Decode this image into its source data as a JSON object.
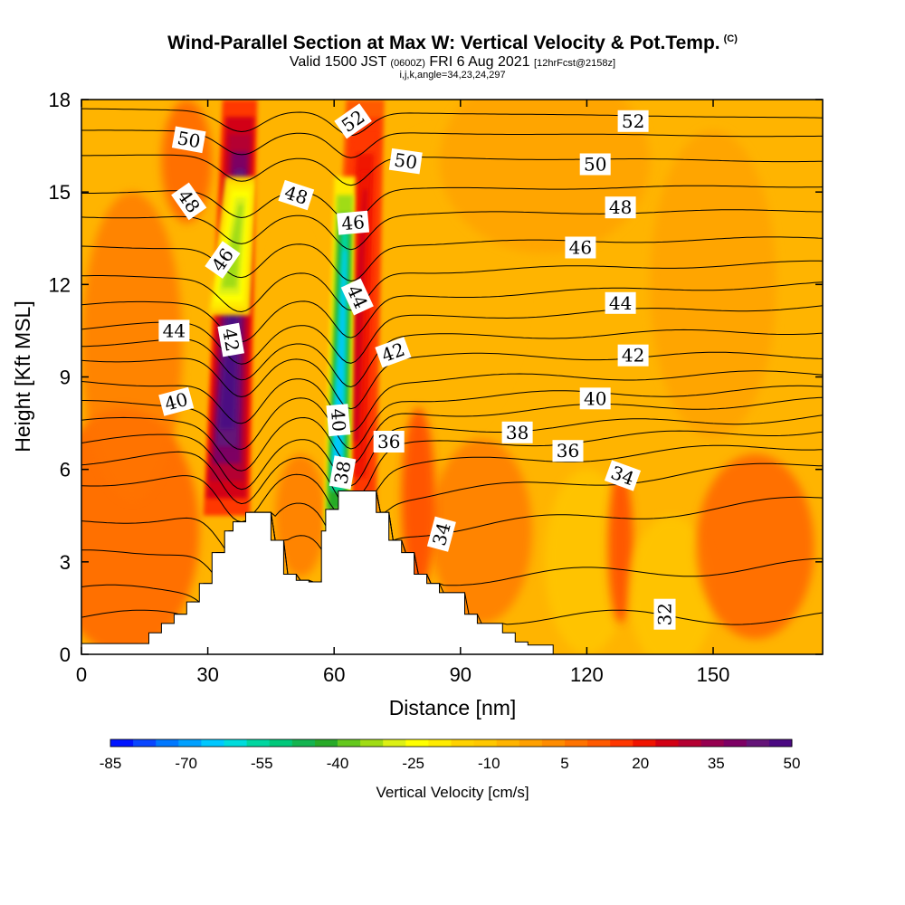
{
  "header": {
    "title": "Wind-Parallel Section at Max W: Vertical Velocity & Pot.Temp.",
    "title_mark": "(C)",
    "valid_prefix": "Valid 1500 JST",
    "valid_utc": "(0600Z)",
    "valid_date": "FRI 6 Aug 2021",
    "forecast": "[12hrFcst@2158z]",
    "params": "i,j,k,angle=34,23,24,297"
  },
  "chart_data": {
    "type": "heatmap",
    "xlabel": "Distance [nm]",
    "ylabel": "Height [Kft MSL]",
    "xlim": [
      0,
      176
    ],
    "ylim": [
      0,
      18
    ],
    "x_ticks": [
      "0",
      "30",
      "60",
      "90",
      "120",
      "150"
    ],
    "y_ticks": [
      "0",
      "3",
      "6",
      "9",
      "12",
      "15",
      "18"
    ],
    "x_tick_values": [
      0,
      30,
      60,
      90,
      120,
      150
    ],
    "y_tick_values": [
      0,
      3,
      6,
      9,
      12,
      15,
      18
    ],
    "field": "Vertical Velocity [cm/s]",
    "colorbar": {
      "title": "Vertical Velocity [cm/s]",
      "labels": [
        "-85",
        "-70",
        "-55",
        "-40",
        "-25",
        "-10",
        "5",
        "20",
        "35",
        "50"
      ],
      "label_values": [
        -85,
        -70,
        -55,
        -40,
        -25,
        -10,
        5,
        20,
        35,
        50
      ],
      "colors": [
        "#0014ff",
        "#0a46ff",
        "#0078ff",
        "#00a0ff",
        "#00c8ff",
        "#00dcdc",
        "#00d6a0",
        "#00c87a",
        "#14b450",
        "#28aa28",
        "#64c81e",
        "#a0dc14",
        "#dcf014",
        "#ffff00",
        "#ffeb00",
        "#ffd200",
        "#ffc800",
        "#ffb400",
        "#ffa000",
        "#ff8c00",
        "#ff7300",
        "#ff5a00",
        "#ff3700",
        "#f01400",
        "#d20014",
        "#b40032",
        "#960050",
        "#7d0064",
        "#641478",
        "#4b0a82"
      ]
    },
    "background_w_range": [
      -10,
      15
    ],
    "updraft_bands": [
      {
        "name": "band-1",
        "x_range": [
          30,
          40
        ],
        "z_range": [
          4.5,
          18
        ],
        "w_max": 50
      },
      {
        "name": "band-2",
        "x_range": [
          59,
          70
        ],
        "z_range": [
          4,
          18
        ],
        "w_max": 25
      }
    ],
    "downdraft_bands": [
      {
        "name": "green-1",
        "x_range": [
          31,
          40
        ],
        "z_range": [
          11,
          15.5
        ],
        "w_min": -35
      },
      {
        "name": "green-2",
        "x_range": [
          58,
          64
        ],
        "z_range": [
          3.5,
          15.5
        ],
        "w_min": -65
      }
    ],
    "terrain": {
      "x": [
        0,
        16,
        16,
        19,
        19,
        22,
        22,
        25,
        25,
        28,
        28,
        31,
        31,
        34,
        34,
        36,
        36,
        39,
        39,
        45,
        45,
        48,
        48,
        51,
        51,
        54,
        54,
        57,
        57,
        58,
        58,
        61,
        61,
        70,
        70,
        73,
        73,
        76,
        76,
        79,
        79,
        82,
        82,
        85,
        85,
        91,
        91,
        94,
        94,
        100,
        100,
        103,
        103,
        106,
        106,
        112,
        112,
        115,
        115,
        176
      ],
      "z": [
        0.35,
        0.35,
        0.7,
        0.7,
        1.0,
        1.0,
        1.3,
        1.3,
        1.7,
        1.7,
        2.3,
        2.3,
        3.3,
        3.3,
        4.0,
        4.0,
        4.3,
        4.3,
        4.6,
        4.6,
        3.7,
        3.7,
        2.6,
        2.6,
        2.4,
        2.4,
        2.35,
        2.35,
        4.0,
        4.0,
        4.7,
        4.7,
        5.3,
        5.3,
        4.6,
        4.6,
        3.7,
        3.7,
        3.3,
        3.3,
        2.6,
        2.6,
        2.3,
        2.3,
        2.0,
        2.0,
        1.3,
        1.3,
        1.0,
        1.0,
        0.7,
        0.7,
        0.4,
        0.4,
        0.3,
        0.3,
        0.0,
        0.0,
        0.0
      ]
    },
    "contours": [
      {
        "value": 32,
        "label": "32",
        "y_left": 1.2,
        "y_right": 1.2
      },
      {
        "value": 33,
        "label": "",
        "y_left": 2.0,
        "y_right": 2.9
      },
      {
        "value": 34,
        "label": "34",
        "y_left": 3.2,
        "y_right": 5.0
      },
      {
        "value": 35,
        "label": "",
        "y_left": 4.3,
        "y_right": 6.2
      },
      {
        "value": 36,
        "label": "36",
        "y_left": 5.6,
        "y_right": 6.8
      },
      {
        "value": 37,
        "label": "",
        "y_left": 6.3,
        "y_right": 7.3
      },
      {
        "value": 38,
        "label": "38",
        "y_left": 6.9,
        "y_right": 7.7
      },
      {
        "value": 39,
        "label": "",
        "y_left": 7.5,
        "y_right": 8.2
      },
      {
        "value": 40,
        "label": "40",
        "y_left": 8.1,
        "y_right": 8.6
      },
      {
        "value": 41,
        "label": "",
        "y_left": 8.8,
        "y_right": 9.1
      },
      {
        "value": 42,
        "label": "42",
        "y_left": 9.6,
        "y_right": 9.7
      },
      {
        "value": 43,
        "label": "",
        "y_left": 10.1,
        "y_right": 10.5
      },
      {
        "value": 44,
        "label": "44",
        "y_left": 10.6,
        "y_right": 11.3
      },
      {
        "value": 45,
        "label": "",
        "y_left": 11.3,
        "y_right": 12.0
      },
      {
        "value": 46,
        "label": "46",
        "y_left": 12.2,
        "y_right": 12.7
      },
      {
        "value": 47,
        "label": "",
        "y_left": 13.2,
        "y_right": 13.5
      },
      {
        "value": 48,
        "label": "48",
        "y_left": 14.2,
        "y_right": 14.4
      },
      {
        "value": 49,
        "label": "",
        "y_left": 15.0,
        "y_right": 15.2
      },
      {
        "value": 50,
        "label": "50",
        "y_left": 16.2,
        "y_right": 16.0
      },
      {
        "value": 51,
        "label": "",
        "y_left": 17.0,
        "y_right": 16.8
      },
      {
        "value": 52,
        "label": "52",
        "y_left": 17.7,
        "y_right": 17.4
      }
    ],
    "contour_labels": [
      {
        "text": "52",
        "x": 131,
        "y": 17.3,
        "angle": 0
      },
      {
        "text": "52",
        "x": 64.5,
        "y": 17.3,
        "angle": -35
      },
      {
        "text": "50",
        "x": 25.5,
        "y": 16.7,
        "angle": 10
      },
      {
        "text": "50",
        "x": 77,
        "y": 16.0,
        "angle": 8
      },
      {
        "text": "50",
        "x": 122,
        "y": 15.9,
        "angle": 0
      },
      {
        "text": "48",
        "x": 25.5,
        "y": 14.7,
        "angle": 55
      },
      {
        "text": "48",
        "x": 51,
        "y": 14.9,
        "angle": 18
      },
      {
        "text": "48",
        "x": 128,
        "y": 14.5,
        "angle": 0
      },
      {
        "text": "46",
        "x": 33.5,
        "y": 12.8,
        "angle": -55
      },
      {
        "text": "46",
        "x": 64.5,
        "y": 14.0,
        "angle": -5
      },
      {
        "text": "46",
        "x": 118.5,
        "y": 13.2,
        "angle": 0
      },
      {
        "text": "44",
        "x": 22,
        "y": 10.5,
        "angle": 0
      },
      {
        "text": "44",
        "x": 65.5,
        "y": 11.6,
        "angle": 65
      },
      {
        "text": "44",
        "x": 128,
        "y": 11.4,
        "angle": 0
      },
      {
        "text": "42",
        "x": 35.5,
        "y": 10.2,
        "angle": 80
      },
      {
        "text": "42",
        "x": 74,
        "y": 9.8,
        "angle": -20
      },
      {
        "text": "42",
        "x": 131,
        "y": 9.7,
        "angle": 0
      },
      {
        "text": "40",
        "x": 22.5,
        "y": 8.2,
        "angle": -15
      },
      {
        "text": "40",
        "x": 61,
        "y": 7.6,
        "angle": 85
      },
      {
        "text": "40",
        "x": 122,
        "y": 8.3,
        "angle": 0
      },
      {
        "text": "38",
        "x": 103.5,
        "y": 7.2,
        "angle": 0
      },
      {
        "text": "38",
        "x": 62,
        "y": 5.9,
        "angle": -80
      },
      {
        "text": "36",
        "x": 73,
        "y": 6.9,
        "angle": 0
      },
      {
        "text": "36",
        "x": 115.5,
        "y": 6.6,
        "angle": 0
      },
      {
        "text": "34",
        "x": 128.5,
        "y": 5.8,
        "angle": 20
      },
      {
        "text": "34",
        "x": 85.5,
        "y": 3.9,
        "angle": -75
      },
      {
        "text": "32",
        "x": 138.5,
        "y": 1.3,
        "angle": -90
      }
    ]
  }
}
